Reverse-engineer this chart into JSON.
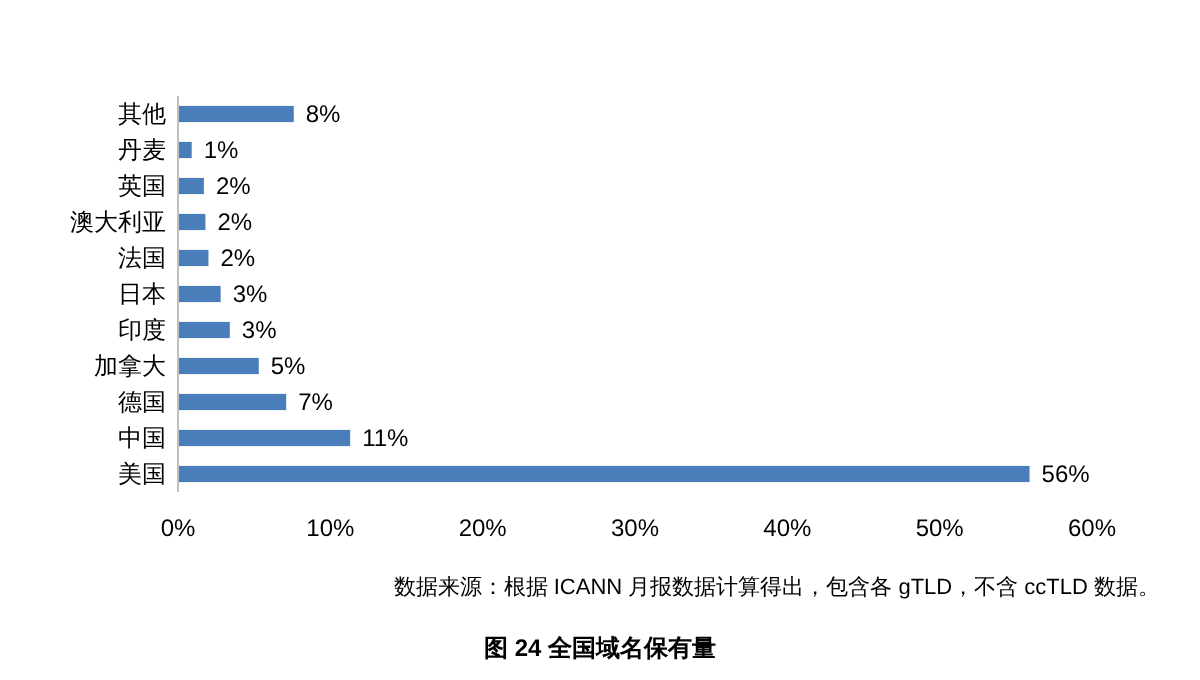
{
  "chart_data": {
    "type": "bar",
    "orientation": "horizontal",
    "title": "图 24  全国域名保有量",
    "categories": [
      "其他",
      "丹麦",
      "英国",
      "澳大利亚",
      "法国",
      "日本",
      "印度",
      "加拿大",
      "德国",
      "中国",
      "美国"
    ],
    "values": [
      7.6,
      0.9,
      1.7,
      1.8,
      2.0,
      2.8,
      3.4,
      5.3,
      7.1,
      11.3,
      55.9
    ],
    "value_labels": [
      "8%",
      "1%",
      "2%",
      "2%",
      "2%",
      "3%",
      "3%",
      "5%",
      "7%",
      "11%",
      "56%"
    ],
    "color": "#4a7ebb",
    "xlim": [
      0,
      60
    ],
    "xticks": [
      {
        "value": 0,
        "label": "0%"
      },
      {
        "value": 10,
        "label": "10%"
      },
      {
        "value": 20,
        "label": "20%"
      },
      {
        "value": 30,
        "label": "30%"
      },
      {
        "value": 40,
        "label": "40%"
      },
      {
        "value": 50,
        "label": "50%"
      },
      {
        "value": 60,
        "label": "60%"
      }
    ],
    "annotations": [
      "数据来源：根据 ICANN 月报数据计算得出，包含各 gTLD，不含 ccTLD 数据。"
    ]
  }
}
